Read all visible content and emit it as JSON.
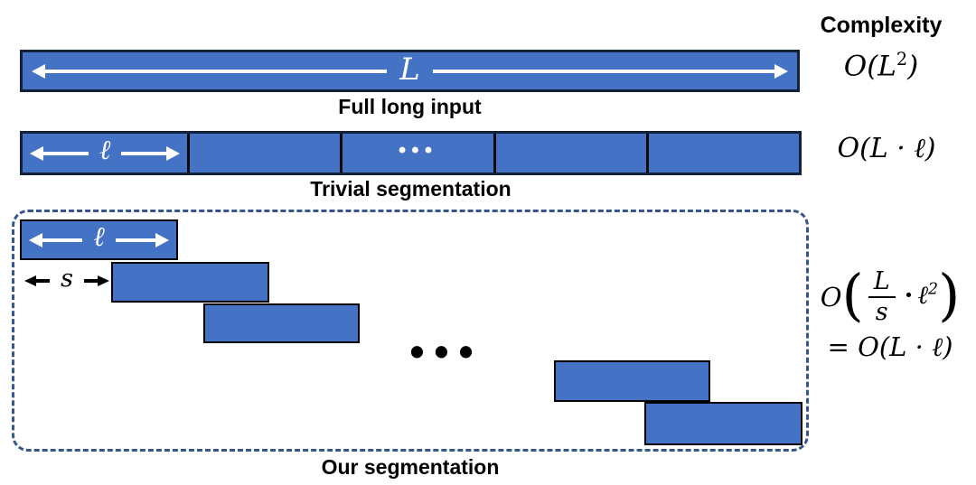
{
  "header": {
    "complexity": "Complexity"
  },
  "full_row": {
    "bar_label": "L",
    "caption": "Full long input",
    "formula": {
      "o": "O",
      "open": "(",
      "var": "L",
      "sup": "2",
      "close": ")"
    }
  },
  "trivial_row": {
    "segment_label": "ℓ",
    "ellipsis": "•••",
    "caption": "Trivial segmentation",
    "formula": {
      "o": "O",
      "body": "(L · ℓ)"
    }
  },
  "our_row": {
    "segment_label": "ℓ",
    "stride_label": "s",
    "ellipsis": "•••",
    "caption": "Our segmentation",
    "formula": {
      "o": "O",
      "open": "(",
      "frac_num": "L",
      "frac_den": "s",
      "dot": "·",
      "var": "ℓ",
      "sup": "2",
      "close": ")",
      "eq": "= ",
      "o2": "O",
      "body2": "(L · ℓ)"
    }
  },
  "colors": {
    "bar_fill": "#4472C4",
    "bar_border": "#14213A",
    "rect_border": "#000000",
    "dashed_border": "#37578A",
    "arrow_color": "#FFFFFF",
    "text": "#000000"
  }
}
